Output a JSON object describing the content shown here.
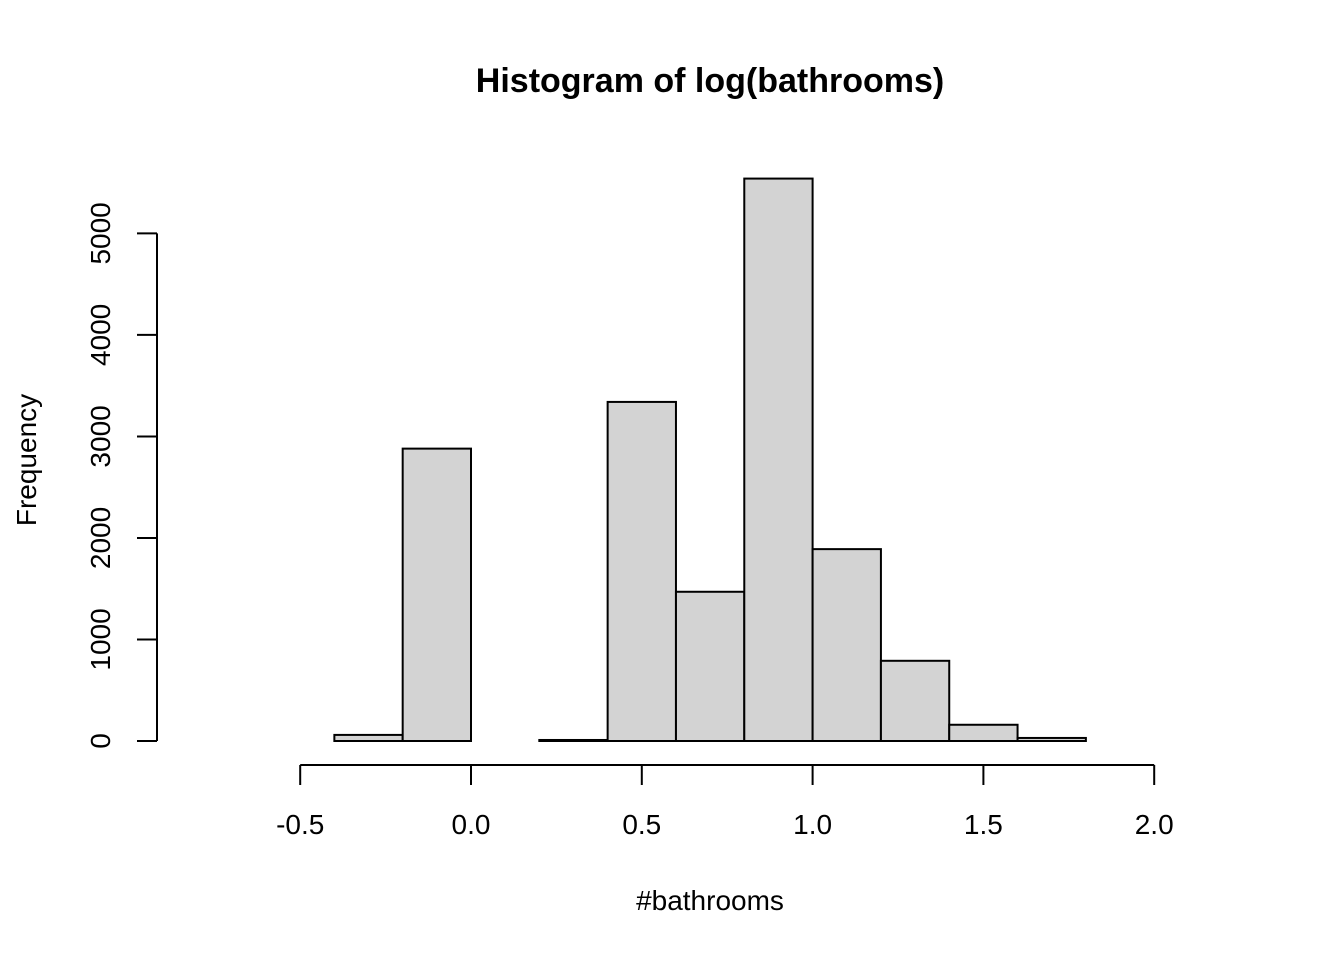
{
  "chart_data": {
    "type": "bar",
    "title": "Histogram of log(bathrooms)",
    "xlabel": "#bathrooms",
    "ylabel": "Frequency",
    "bins": [
      {
        "start": -0.8,
        "end": -0.6,
        "count": 0
      },
      {
        "start": -0.6,
        "end": -0.4,
        "count": 0
      },
      {
        "start": -0.4,
        "end": -0.2,
        "count": 60
      },
      {
        "start": -0.2,
        "end": 0.0,
        "count": 2880
      },
      {
        "start": 0.0,
        "end": 0.2,
        "count": 0
      },
      {
        "start": 0.2,
        "end": 0.4,
        "count": 10
      },
      {
        "start": 0.4,
        "end": 0.6,
        "count": 3340
      },
      {
        "start": 0.6,
        "end": 0.8,
        "count": 1470
      },
      {
        "start": 0.8,
        "end": 1.0,
        "count": 5540
      },
      {
        "start": 1.0,
        "end": 1.2,
        "count": 1890
      },
      {
        "start": 1.2,
        "end": 1.4,
        "count": 790
      },
      {
        "start": 1.4,
        "end": 1.6,
        "count": 160
      },
      {
        "start": 1.6,
        "end": 1.8,
        "count": 30
      },
      {
        "start": 1.8,
        "end": 2.0,
        "count": 0
      },
      {
        "start": 2.0,
        "end": 2.2,
        "count": 0
      }
    ],
    "xlim": [
      -0.8,
      2.2
    ],
    "ylim": [
      0,
      5540
    ],
    "x_ticks": [
      {
        "value": -0.5,
        "label": "-0.5"
      },
      {
        "value": 0.0,
        "label": "0.0"
      },
      {
        "value": 0.5,
        "label": "0.5"
      },
      {
        "value": 1.0,
        "label": "1.0"
      },
      {
        "value": 1.5,
        "label": "1.5"
      },
      {
        "value": 2.0,
        "label": "2.0"
      }
    ],
    "y_ticks": [
      {
        "value": 0,
        "label": "0"
      },
      {
        "value": 1000,
        "label": "1000"
      },
      {
        "value": 2000,
        "label": "2000"
      },
      {
        "value": 3000,
        "label": "3000"
      },
      {
        "value": 4000,
        "label": "4000"
      },
      {
        "value": 5000,
        "label": "5000"
      }
    ],
    "grid": false,
    "bar_fill": "#d3d3d3",
    "bar_stroke": "#000000"
  }
}
